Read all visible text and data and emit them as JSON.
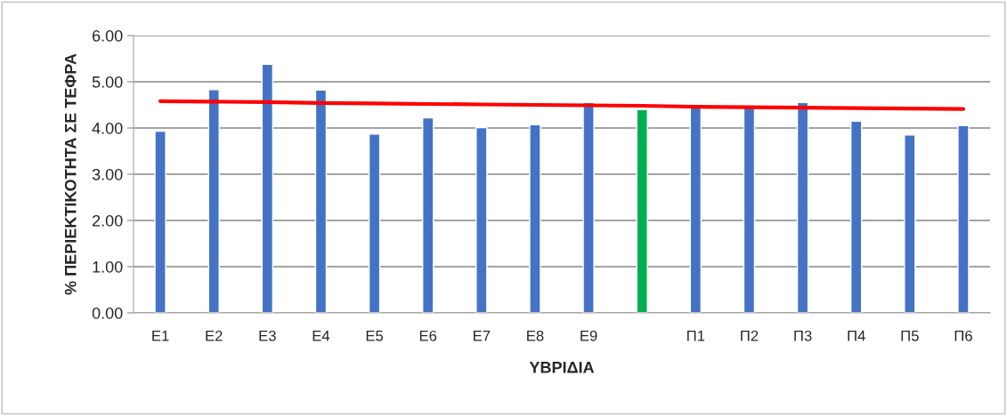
{
  "chart_data": {
    "type": "bar",
    "xlabel": "ΥΒΡΙΔΙΑ",
    "ylabel": "% ΠΕΡΙΕΚΤΙΚΟΤΗΤΑ ΣΕ ΤΕΦΡΑ",
    "categories": [
      "Ε1",
      "Ε2",
      "Ε3",
      "Ε4",
      "Ε5",
      "Ε6",
      "Ε7",
      "Ε8",
      "Ε9",
      null,
      "Π1",
      "Π2",
      "Π3",
      "Π4",
      "Π5",
      "Π6"
    ],
    "series": [
      {
        "values": [
          3.93,
          4.83,
          5.38,
          4.82,
          3.87,
          4.22,
          4.01,
          4.07,
          4.55,
          4.4,
          4.48,
          4.47,
          4.55,
          4.15,
          3.85,
          4.05
        ],
        "colors": [
          "#4472c4",
          "#4472c4",
          "#4472c4",
          "#4472c4",
          "#4472c4",
          "#4472c4",
          "#4472c4",
          "#4472c4",
          "#4472c4",
          "#00b050",
          "#4472c4",
          "#4472c4",
          "#4472c4",
          "#4472c4",
          "#4472c4",
          "#4472c4"
        ]
      },
      {
        "type": "line",
        "color": "#ff0000",
        "values": [
          4.58,
          4.57,
          4.56,
          4.54,
          4.53,
          4.52,
          4.51,
          4.5,
          4.49,
          4.48,
          4.46,
          4.45,
          4.44,
          4.43,
          4.42,
          4.41
        ]
      }
    ],
    "ylim": [
      0,
      6
    ],
    "yticks": [
      {
        "value": 0,
        "label": "0.00"
      },
      {
        "value": 1,
        "label": "1.00"
      },
      {
        "value": 2,
        "label": "2.00"
      },
      {
        "value": 3,
        "label": "3.00"
      },
      {
        "value": 4,
        "label": "4.00"
      },
      {
        "value": 5,
        "label": "5.00"
      },
      {
        "value": 6,
        "label": "6.00"
      }
    ],
    "grid": "y",
    "legend": false,
    "marker": "none",
    "line_style": "solid"
  }
}
